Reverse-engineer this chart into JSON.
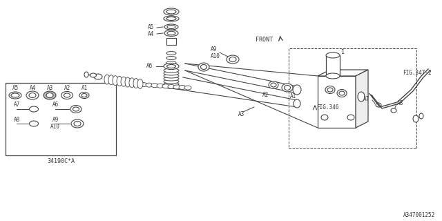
{
  "bg_color": "#ffffff",
  "line_color": "#444444",
  "text_color": "#333333",
  "fig_width": 6.4,
  "fig_height": 3.2,
  "dpi": 100,
  "bottom_right_label": "A347001252",
  "bottom_left_label": "34190C*A",
  "fig346_label": "FIG.346",
  "fig347_label": "FIG.347-2",
  "front_label": "FRONT"
}
